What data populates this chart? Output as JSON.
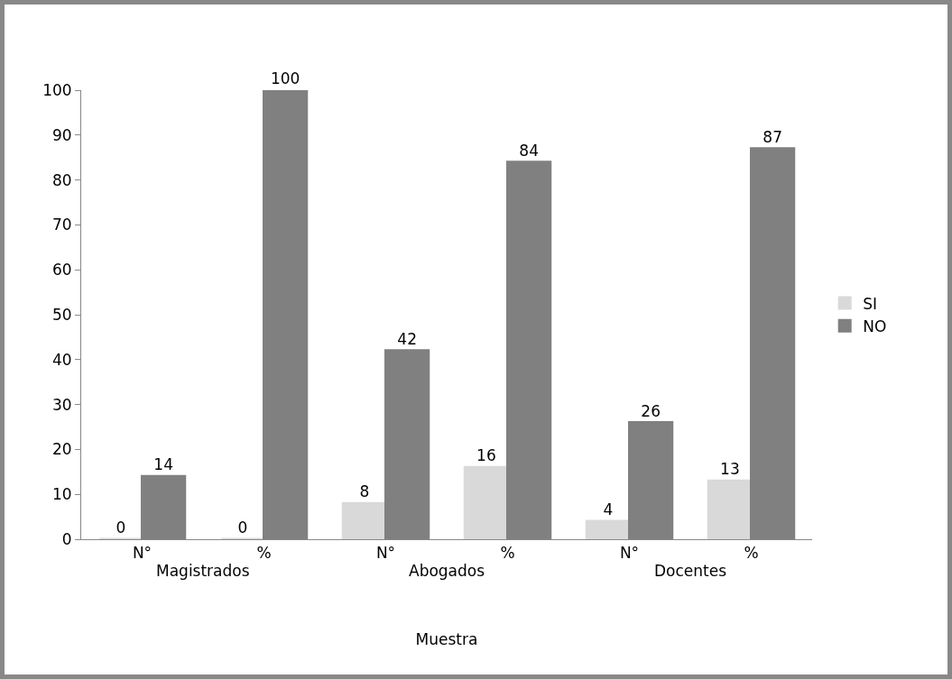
{
  "chart_data": {
    "type": "bar",
    "categories": [
      "N°",
      "%",
      "N°",
      "%",
      "N°",
      "%"
    ],
    "series": [
      {
        "name": "SI",
        "color": "#d9d9d9",
        "values": [
          0,
          0,
          8,
          16,
          4,
          13
        ]
      },
      {
        "name": "NO",
        "color": "#808080",
        "values": [
          14,
          100,
          42,
          84,
          26,
          87
        ]
      }
    ],
    "xlabel": "Muestra",
    "annotations": [
      "Magistrados",
      "Abogados",
      "Docentes"
    ],
    "ylim": [
      0,
      100
    ],
    "yticks": [
      0,
      10,
      20,
      30,
      40,
      50,
      60,
      70,
      80,
      90,
      100
    ],
    "grid": false,
    "legend": "right",
    "data_labels": true
  }
}
